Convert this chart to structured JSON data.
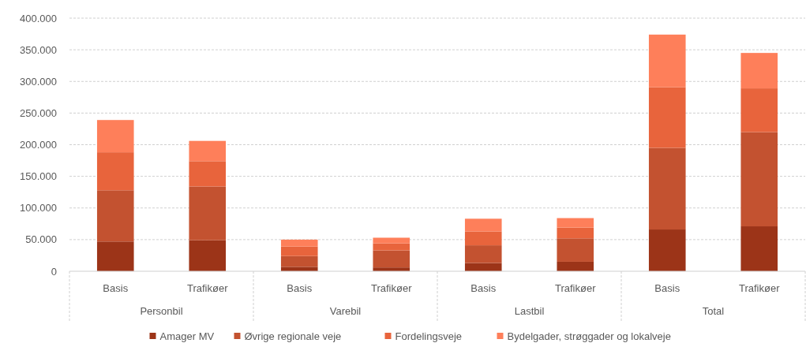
{
  "chart_data": {
    "type": "bar",
    "stacked": true,
    "categories": [
      "Basis",
      "Trafikøer",
      "Basis",
      "Trafikøer",
      "Basis",
      "Trafikøer",
      "Basis",
      "Trafikøer"
    ],
    "annotations": [
      "Personbil",
      "Varebil",
      "Lastbil",
      "Total"
    ],
    "series": [
      {
        "name": "Amager MV",
        "color": "#9c3418",
        "values": [
          47000,
          49000,
          7000,
          6000,
          13000,
          15000,
          66000,
          71000
        ]
      },
      {
        "name": "Øvrige regionale veje",
        "color": "#c35230",
        "values": [
          81000,
          85000,
          17000,
          27000,
          28000,
          37000,
          129000,
          149000
        ]
      },
      {
        "name": "Fordelingsveje",
        "color": "#e8643c",
        "values": [
          60000,
          40000,
          15000,
          11000,
          22000,
          17000,
          96000,
          69000
        ]
      },
      {
        "name": "Bydelgader, strøggader og lokalveje",
        "color": "#fe7f5a",
        "values": [
          51000,
          32000,
          11000,
          9000,
          20000,
          15000,
          83000,
          56000
        ]
      }
    ],
    "ylim": [
      0,
      400000
    ],
    "yticks": [
      {
        "value": 0,
        "label": "0"
      },
      {
        "value": 50000,
        "label": "50.000"
      },
      {
        "value": 100000,
        "label": "100.000"
      },
      {
        "value": 150000,
        "label": "150.000"
      },
      {
        "value": 200000,
        "label": "200.000"
      },
      {
        "value": 250000,
        "label": "250.000"
      },
      {
        "value": 300000,
        "label": "300.000"
      },
      {
        "value": 350000,
        "label": "350.000"
      },
      {
        "value": 400000,
        "label": "400.000"
      }
    ],
    "grid": "y",
    "legend": "bottom"
  }
}
